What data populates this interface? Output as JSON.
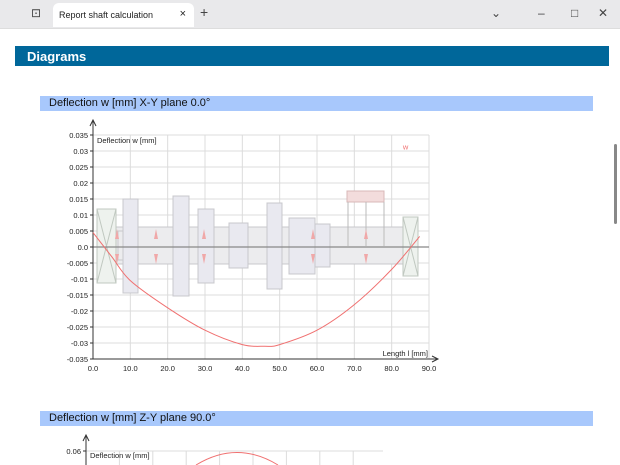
{
  "browser": {
    "tab_title": "Report shaft calculation",
    "tab_close": "×",
    "new_tab": "+",
    "dropdown": "⌄",
    "minimize": "–",
    "maximize": "□",
    "close": "✕"
  },
  "report": {
    "section_title": "Diagrams"
  },
  "chart_data": [
    {
      "type": "line",
      "title": "Deflection w [mm] X-Y plane 0.0°",
      "ylabel": "Deflection w [mm]",
      "xlabel": "Length l [mm]",
      "xlim": [
        0,
        90
      ],
      "ylim": [
        -0.035,
        0.035
      ],
      "grid": true,
      "legend": "top-right",
      "xticks": [
        "0.0",
        "10.0",
        "20.0",
        "30.0",
        "40.0",
        "50.0",
        "60.0",
        "70.0",
        "80.0",
        "90.0"
      ],
      "yticks": [
        "0.035",
        "0.03",
        "0.025",
        "0.02",
        "0.015",
        "0.01",
        "0.005",
        "0.0",
        "-0.005",
        "-0.01",
        "-0.015",
        "-0.02",
        "-0.025",
        "-0.03",
        "-0.035"
      ],
      "series": [
        {
          "name": "w",
          "color": "#f07070",
          "x": [
            0,
            5,
            10,
            20,
            30,
            40,
            46,
            50,
            60,
            70,
            80,
            87.5
          ],
          "y": [
            0.0045,
            -0.003,
            -0.0105,
            -0.019,
            -0.026,
            -0.0305,
            -0.031,
            -0.0305,
            -0.026,
            -0.018,
            -0.007,
            0.0033
          ]
        }
      ]
    },
    {
      "type": "line",
      "title": "Deflection w [mm] Z-Y plane 90.0°",
      "ylabel": "Deflection w [mm]",
      "yticks": [
        "0.06"
      ],
      "grid": true
    }
  ]
}
